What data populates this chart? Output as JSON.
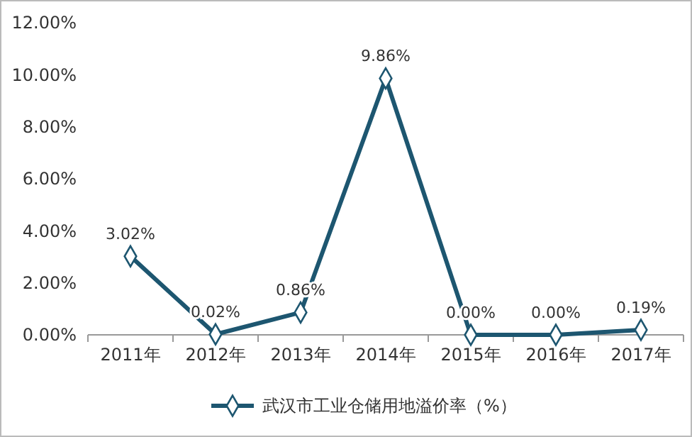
{
  "chart_data": {
    "type": "line",
    "categories": [
      "2011年",
      "2012年",
      "2013年",
      "2014年",
      "2015年",
      "2016年",
      "2017年"
    ],
    "series": [
      {
        "name": "武汉市工业仓储用地溢价率（%）",
        "color": "#1d5670",
        "values": [
          3.02,
          0.02,
          0.86,
          9.86,
          0,
          0,
          0.19
        ],
        "value_labels": [
          "3.02%",
          "0.02%",
          "0.86%",
          "9.86%",
          "0.00%",
          "0.00%",
          "0.19%"
        ]
      }
    ],
    "ylim": [
      0,
      12
    ],
    "yticks": [
      {
        "value": 0,
        "label": "0.00%"
      },
      {
        "value": 2,
        "label": "2.00%"
      },
      {
        "value": 4,
        "label": "4.00%"
      },
      {
        "value": 6,
        "label": "6.00%"
      },
      {
        "value": 8,
        "label": "8.00%"
      },
      {
        "value": 10,
        "label": "10.00%"
      },
      {
        "value": 12,
        "label": "12.00%"
      }
    ],
    "marker": "diamond",
    "legend": "bottom"
  }
}
